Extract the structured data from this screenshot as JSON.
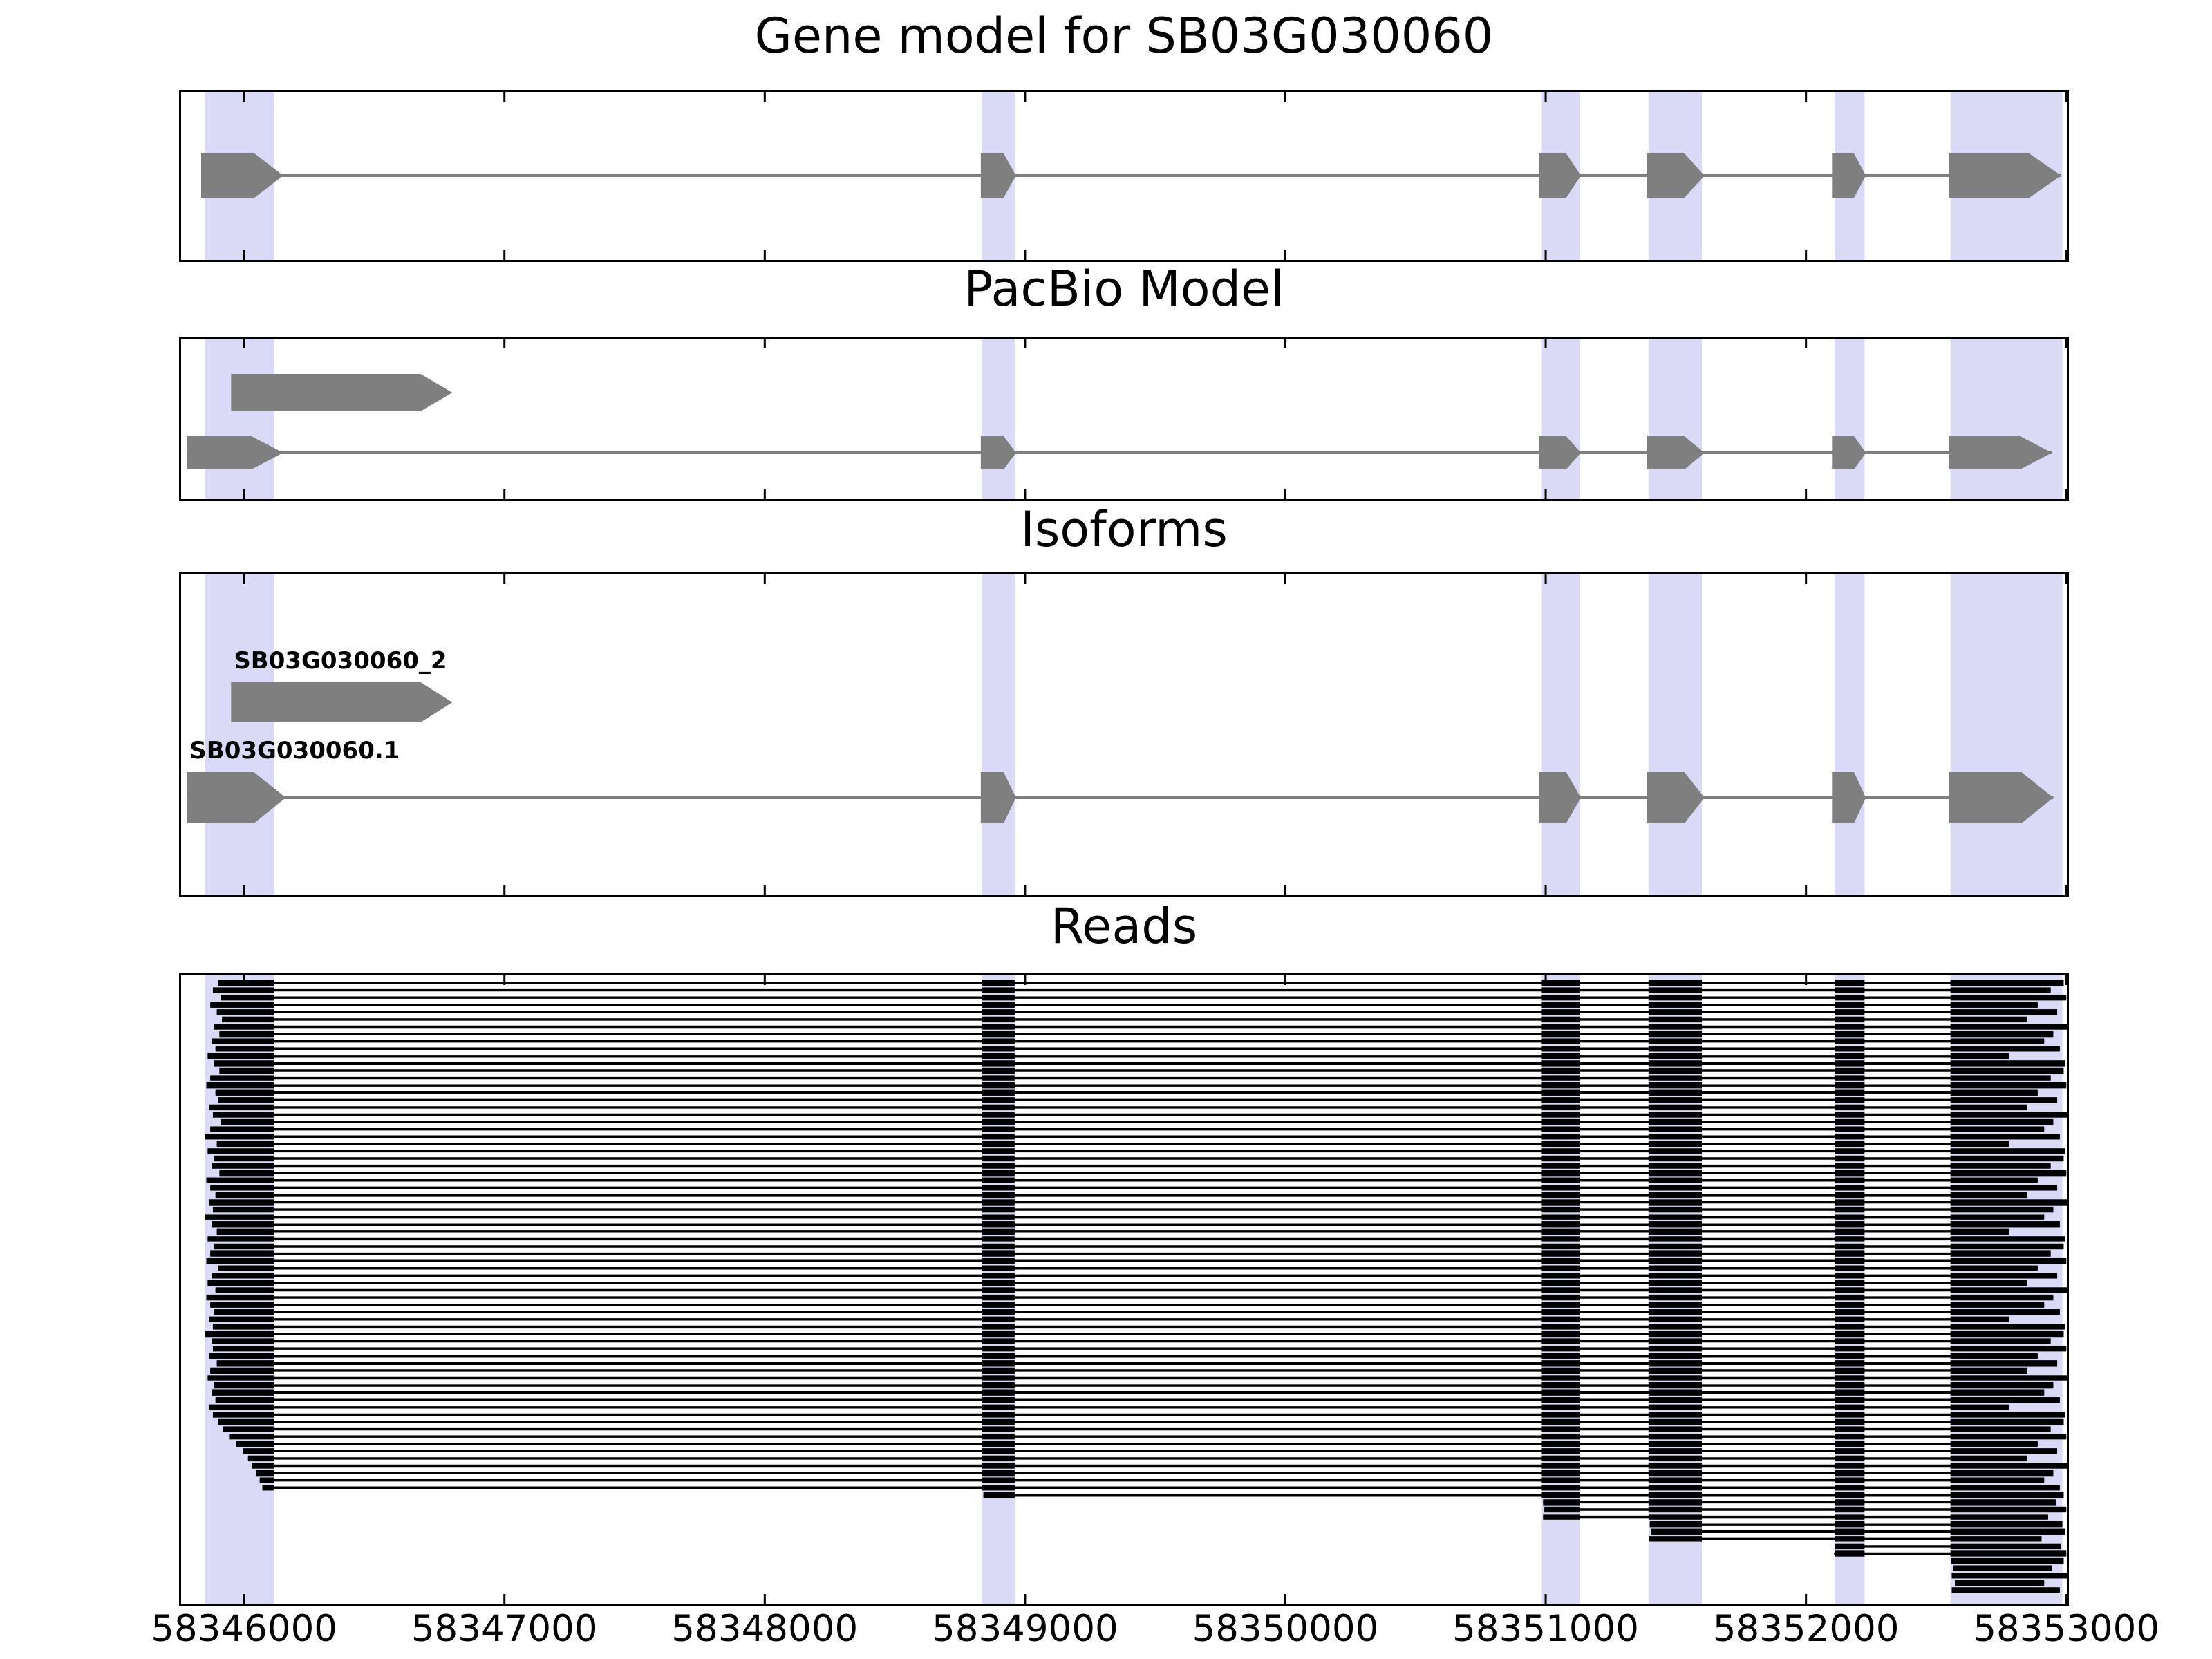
{
  "chart_data": {
    "type": "genome-annotation-tracks",
    "x_axis": {
      "min": 58345750,
      "max": 58353010,
      "ticks": [
        58346000,
        58347000,
        58348000,
        58349000,
        58350000,
        58351000,
        58352000,
        58353000
      ],
      "tick_labels": [
        "58346000",
        "58347000",
        "58348000",
        "58349000",
        "58350000",
        "58351000",
        "58352000",
        "58353000"
      ]
    },
    "highlight_regions": [
      [
        58345850,
        58346115
      ],
      [
        58348835,
        58348960
      ],
      [
        58350985,
        58351130
      ],
      [
        58351395,
        58351600
      ],
      [
        58352110,
        58352225
      ],
      [
        58352555,
        58352985
      ]
    ],
    "colors": {
      "highlight": "#dadaf6",
      "exon": "#7f7f7f",
      "intron": "#7f7f7f",
      "read": "#000000",
      "border": "#000000",
      "text": "#000000",
      "background": "#ffffff"
    },
    "panels": [
      {
        "id": "gene-model",
        "title": "Gene model for SB03G030060",
        "models": [
          {
            "name": "",
            "exons": [
              [
                58345835,
                58346150
              ],
              [
                58348830,
                58348965
              ],
              [
                58350975,
                58351135
              ],
              [
                58351390,
                58351610
              ],
              [
                58352100,
                58352230
              ],
              [
                58352550,
                58352980
              ]
            ]
          }
        ]
      },
      {
        "id": "pacbio-model",
        "title": "PacBio Model",
        "models": [
          {
            "name": "",
            "exons": [
              [
                58345950,
                58346800
              ]
            ]
          },
          {
            "name": "",
            "exons": [
              [
                58345780,
                58346150
              ],
              [
                58348830,
                58348965
              ],
              [
                58350975,
                58351135
              ],
              [
                58351390,
                58351610
              ],
              [
                58352100,
                58352230
              ],
              [
                58352550,
                58352945
              ]
            ]
          }
        ]
      },
      {
        "id": "isoforms",
        "title": "Isoforms",
        "models": [
          {
            "name": "SB03G030060_2",
            "exons": [
              [
                58345950,
                58346800
              ]
            ]
          },
          {
            "name": "SB03G030060.1",
            "exons": [
              [
                58345780,
                58346160
              ],
              [
                58348830,
                58348965
              ],
              [
                58350975,
                58351135
              ],
              [
                58351390,
                58351610
              ],
              [
                58352100,
                58352230
              ],
              [
                58352550,
                58352950
              ]
            ]
          }
        ]
      },
      {
        "id": "reads",
        "title": "Reads",
        "read_exons": [
          [
            58345750,
            58346115
          ],
          [
            58348835,
            58348960
          ],
          [
            58350985,
            58351130
          ],
          [
            58351395,
            58351600
          ],
          [
            58352110,
            58352225
          ],
          [
            58352555,
            58353010
          ]
        ],
        "reads": [
          [
            58345900,
            58352990
          ],
          [
            58345880,
            58352940
          ],
          [
            58345910,
            58353000
          ],
          [
            58345870,
            58352890
          ],
          [
            58345895,
            58352965
          ],
          [
            58345915,
            58352850
          ],
          [
            58345885,
            58353005
          ],
          [
            58345905,
            58352950
          ],
          [
            58345875,
            58352915
          ],
          [
            58345890,
            58352975
          ],
          [
            58345860,
            58352780
          ],
          [
            58345885,
            58352995
          ],
          [
            58345905,
            58352990
          ],
          [
            58345870,
            58352940
          ],
          [
            58345855,
            58353000
          ],
          [
            58345890,
            58352890
          ],
          [
            58345900,
            58352965
          ],
          [
            58345865,
            58352850
          ],
          [
            58345880,
            58353005
          ],
          [
            58345910,
            58352950
          ],
          [
            58345870,
            58352915
          ],
          [
            58345850,
            58352975
          ],
          [
            58345895,
            58352780
          ],
          [
            58345860,
            58352995
          ],
          [
            58345885,
            58352990
          ],
          [
            58345875,
            58352940
          ],
          [
            58345905,
            58353000
          ],
          [
            58345855,
            58352890
          ],
          [
            58345870,
            58352965
          ],
          [
            58345890,
            58352850
          ],
          [
            58345865,
            58353005
          ],
          [
            58345880,
            58352950
          ],
          [
            58345850,
            58352915
          ],
          [
            58345875,
            58352975
          ],
          [
            58345895,
            58352780
          ],
          [
            58345860,
            58352995
          ],
          [
            58345885,
            58352990
          ],
          [
            58345870,
            58352940
          ],
          [
            58345855,
            58353000
          ],
          [
            58345900,
            58352890
          ],
          [
            58345875,
            58352965
          ],
          [
            58345860,
            58352850
          ],
          [
            58345890,
            58353005
          ],
          [
            58345855,
            58352950
          ],
          [
            58345870,
            58352915
          ],
          [
            58345885,
            58352975
          ],
          [
            58345865,
            58352780
          ],
          [
            58345880,
            58352995
          ],
          [
            58345850,
            58352990
          ],
          [
            58345875,
            58352940
          ],
          [
            58345880,
            58353000
          ],
          [
            58345865,
            58352890
          ],
          [
            58345895,
            58352965
          ],
          [
            58345870,
            58352850
          ],
          [
            58345860,
            58353005
          ],
          [
            58345885,
            58352950
          ],
          [
            58345875,
            58352915
          ],
          [
            58345890,
            58352975
          ],
          [
            58345865,
            58352780
          ],
          [
            58345880,
            58352995
          ],
          [
            58345900,
            58352990
          ],
          [
            58345920,
            58352940
          ],
          [
            58345945,
            58353000
          ],
          [
            58345970,
            58352890
          ],
          [
            58345995,
            58352965
          ],
          [
            58346015,
            58352850
          ],
          [
            58346030,
            58353005
          ],
          [
            58346045,
            58352950
          ],
          [
            58346060,
            58352915
          ],
          [
            58346070,
            58352975
          ],
          [
            58348840,
            58352990
          ],
          [
            58350990,
            58352960
          ],
          [
            58350995,
            58353000
          ],
          [
            58350990,
            58352930
          ],
          [
            58351400,
            58352985
          ],
          [
            58351405,
            58352995
          ],
          [
            58351398,
            58352905
          ],
          [
            58352112,
            58352980
          ],
          [
            58352108,
            58353000
          ],
          [
            58352558,
            58352990
          ],
          [
            58352565,
            58352945
          ],
          [
            58352560,
            58353005
          ],
          [
            58352572,
            58352915
          ],
          [
            58352560,
            58352975
          ]
        ]
      }
    ]
  }
}
